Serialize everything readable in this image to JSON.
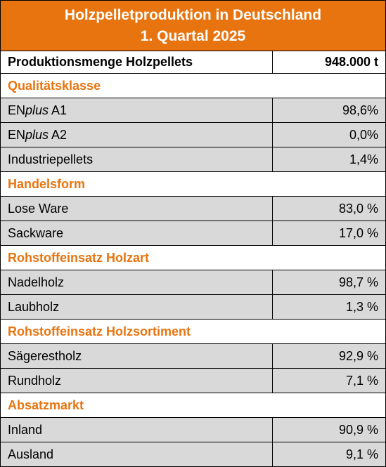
{
  "header": {
    "title_lines": [
      "Holzpelletproduktion in Deutschland",
      "1. Quartal 2025"
    ]
  },
  "total": {
    "label": "Produktionsmenge Holzpellets",
    "value": "948.000 t"
  },
  "sections": [
    {
      "title": "Qualitätsklasse",
      "rows": [
        {
          "label_parts": [
            {
              "text": "EN"
            },
            {
              "text": "plus",
              "italic": true
            },
            {
              "text": " A1"
            }
          ],
          "value": "98,6%"
        },
        {
          "label_parts": [
            {
              "text": "EN"
            },
            {
              "text": "plus",
              "italic": true
            },
            {
              "text": " A2"
            }
          ],
          "value": "0,0%"
        },
        {
          "label": "Industriepellets",
          "value": "1,4%"
        }
      ]
    },
    {
      "title": "Handelsform",
      "rows": [
        {
          "label": "Lose Ware",
          "value": "83,0 %"
        },
        {
          "label": "Sackware",
          "value": "17,0 %"
        }
      ]
    },
    {
      "title": "Rohstoffeinsatz Holzart",
      "rows": [
        {
          "label": "Nadelholz",
          "value": "98,7 %"
        },
        {
          "label": "Laubholz",
          "value": "1,3 %"
        }
      ]
    },
    {
      "title": "Rohstoffeinsatz Holzsortiment",
      "rows": [
        {
          "label": "Sägerestholz",
          "value": "92,9 %"
        },
        {
          "label": "Rundholz",
          "value": "7,1 %"
        }
      ]
    },
    {
      "title": "Absatzmarkt",
      "rows": [
        {
          "label": "Inland",
          "value": "90,9 %"
        },
        {
          "label": "Ausland",
          "value": "9,1 %"
        }
      ]
    }
  ]
}
